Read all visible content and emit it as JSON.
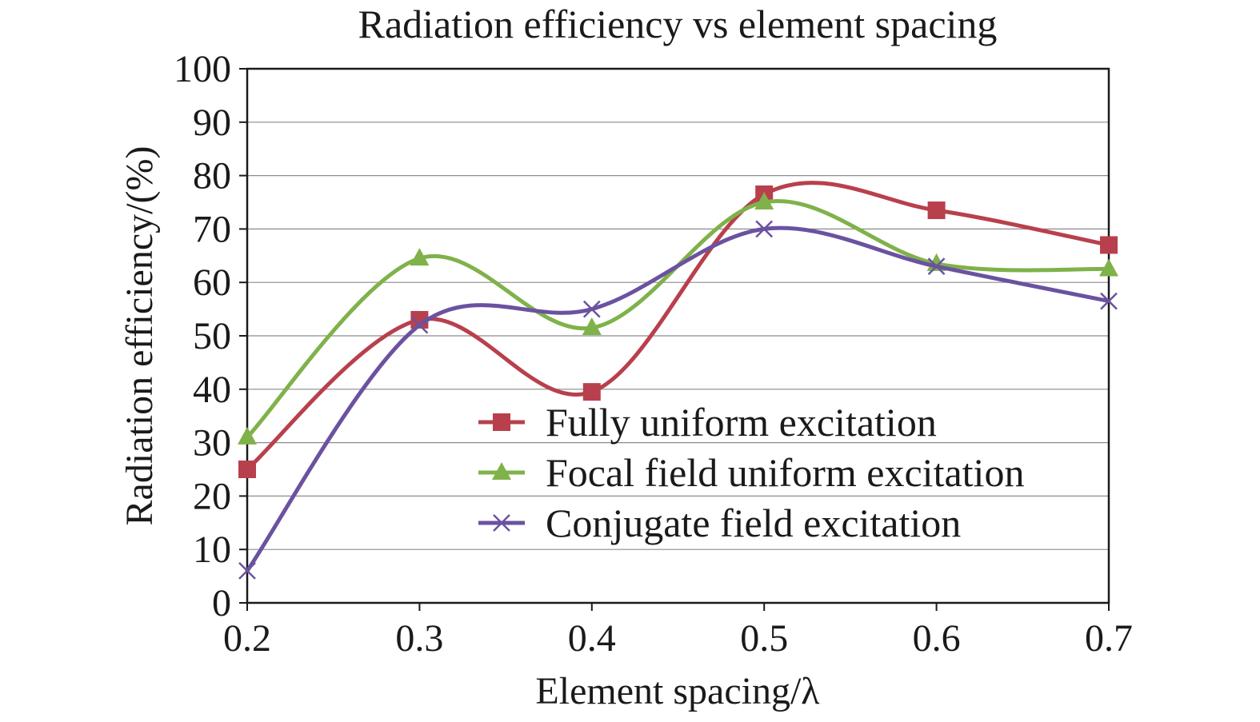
{
  "chart_data": {
    "type": "line",
    "title": "Radiation efficiency vs element spacing",
    "xlabel": "Element spacing/λ",
    "ylabel": "Radiation efficiency/(%)",
    "xlim": [
      0.2,
      0.7
    ],
    "ylim": [
      0,
      100
    ],
    "x_ticks": [
      "0.2",
      "0.3",
      "0.4",
      "0.5",
      "0.6",
      "0.7"
    ],
    "y_ticks": [
      "0",
      "10",
      "20",
      "30",
      "40",
      "50",
      "60",
      "70",
      "80",
      "90",
      "100"
    ],
    "x": [
      0.2,
      0.3,
      0.4,
      0.5,
      0.6,
      0.7
    ],
    "grid": "horizontal",
    "legend_position": "lower-right",
    "smooth": true,
    "series": [
      {
        "name": "Fully uniform excitation",
        "values": [
          25,
          53,
          39.5,
          76.5,
          73.5,
          67
        ],
        "color": "#b8404c",
        "marker": "square"
      },
      {
        "name": "Focal field uniform excitation",
        "values": [
          31,
          64.5,
          51.5,
          75,
          63.5,
          62.5
        ],
        "color": "#7fb24a",
        "marker": "triangle"
      },
      {
        "name": "Conjugate field excitation",
        "values": [
          6,
          52,
          55,
          70,
          63,
          56.5
        ],
        "color": "#6b52a0",
        "marker": "x"
      }
    ]
  }
}
